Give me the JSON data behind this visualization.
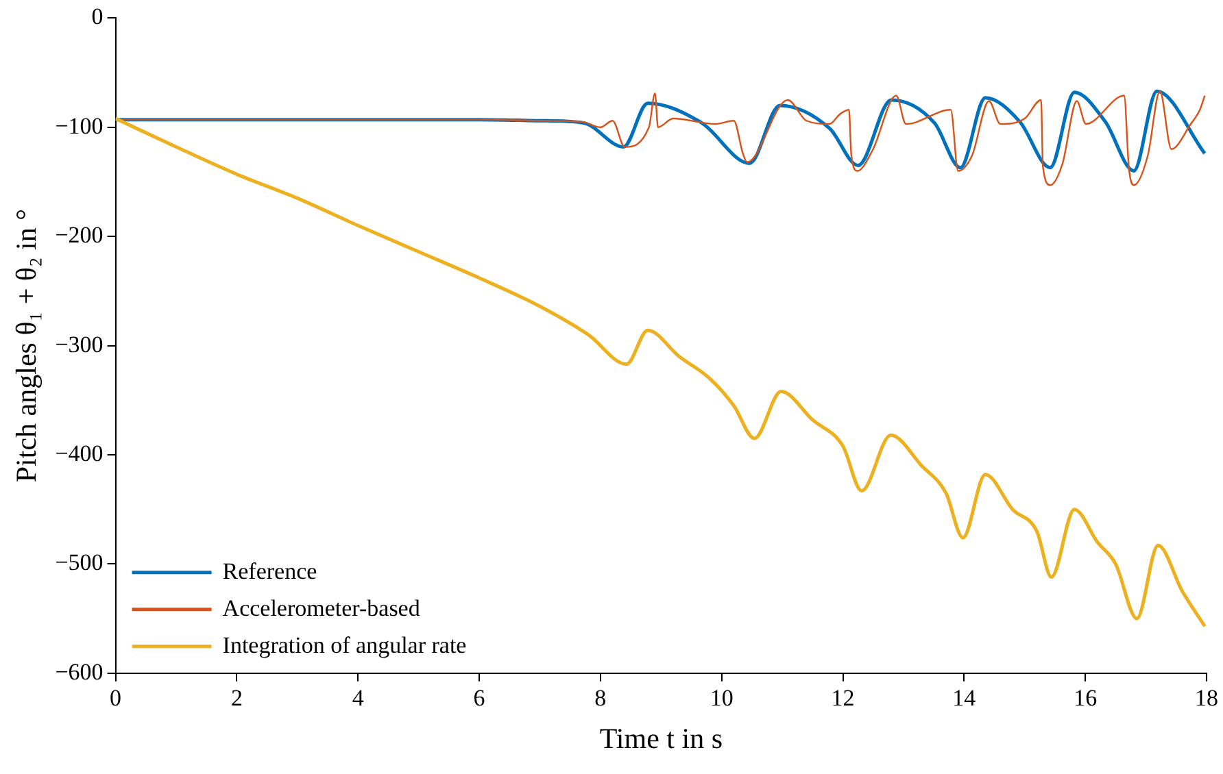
{
  "chart_data": {
    "type": "line",
    "xlabel": "Time t in s",
    "ylabel": "Pitch angles θ₁ + θ₂ in °",
    "xlim": [
      0,
      18
    ],
    "xticks": [
      0,
      2,
      4,
      6,
      8,
      10,
      12,
      14,
      16,
      18
    ],
    "ylim": [
      -600,
      0
    ],
    "yticks": [
      -600,
      -500,
      -400,
      -300,
      -200,
      -100,
      0
    ],
    "grid": false,
    "legend": "bottom left",
    "marker": "none",
    "line_style": "solid",
    "series": [
      {
        "name": "Reference",
        "color": "#0072bd",
        "x": [
          0,
          1,
          2,
          3,
          4,
          5,
          6,
          7,
          7.72,
          8.38,
          8.78,
          9.67,
          10.46,
          10.96,
          11.78,
          12.25,
          12.8,
          13.51,
          13.94,
          14.35,
          14.92,
          15.42,
          15.82,
          16.33,
          16.8,
          17.18,
          17.97
        ],
        "values": [
          -93,
          -93,
          -93,
          -93,
          -93,
          -93,
          -93,
          -94,
          -96,
          -118,
          -78,
          -96,
          -133,
          -80,
          -101,
          -135,
          -75,
          -96,
          -137,
          -73,
          -95,
          -137,
          -68,
          -95,
          -140,
          -67,
          -124
        ]
      },
      {
        "name": "Accelerometer-based",
        "color": "#d95319",
        "x": [
          0,
          1,
          2,
          3,
          4,
          5,
          6,
          7,
          7.7,
          8.0,
          8.2,
          8.4,
          8.8,
          8.9,
          8.95,
          9.2,
          9.9,
          10.2,
          10.35,
          10.42,
          11.09,
          11.4,
          11.78,
          11.95,
          12.1,
          12.14,
          12.24,
          12.49,
          12.88,
          13.04,
          13.78,
          13.9,
          14.13,
          14.41,
          14.6,
          15.0,
          15.27,
          15.3,
          15.42,
          15.62,
          15.86,
          16.01,
          16.64,
          16.72,
          16.8,
          17.03,
          17.23,
          17.42,
          17.74,
          17.89,
          17.97
        ],
        "values": [
          -93,
          -93,
          -93,
          -93,
          -93,
          -93,
          -93,
          -94,
          -95,
          -100,
          -94,
          -118,
          -100,
          -69,
          -100,
          -92,
          -97,
          -94,
          -124,
          -132,
          -75,
          -94,
          -97,
          -88,
          -84,
          -126,
          -140,
          -121,
          -71,
          -97,
          -84,
          -140,
          -126,
          -76,
          -97,
          -92,
          -75,
          -136,
          -153,
          -134,
          -76,
          -97,
          -71,
          -138,
          -153,
          -126,
          -67,
          -120,
          -97,
          -84,
          -71
        ]
      },
      {
        "name": "Integration of angular rate",
        "color": "#edb120",
        "x": [
          0,
          1,
          2,
          3,
          4,
          5,
          6,
          7,
          7.8,
          8.43,
          8.78,
          9.3,
          9.8,
          10.2,
          10.54,
          10.98,
          11.5,
          12.0,
          12.31,
          12.79,
          13.3,
          13.7,
          13.98,
          14.35,
          14.8,
          15.2,
          15.44,
          15.82,
          16.2,
          16.5,
          16.85,
          17.2,
          17.6,
          17.97
        ],
        "values": [
          -92,
          -118,
          -143,
          -165,
          -190,
          -214,
          -238,
          -264,
          -290,
          -317,
          -286,
          -310,
          -330,
          -355,
          -385,
          -342,
          -368,
          -392,
          -433,
          -382,
          -410,
          -435,
          -476,
          -418,
          -450,
          -470,
          -512,
          -450,
          -480,
          -500,
          -550,
          -483,
          -525,
          -557
        ]
      }
    ]
  }
}
